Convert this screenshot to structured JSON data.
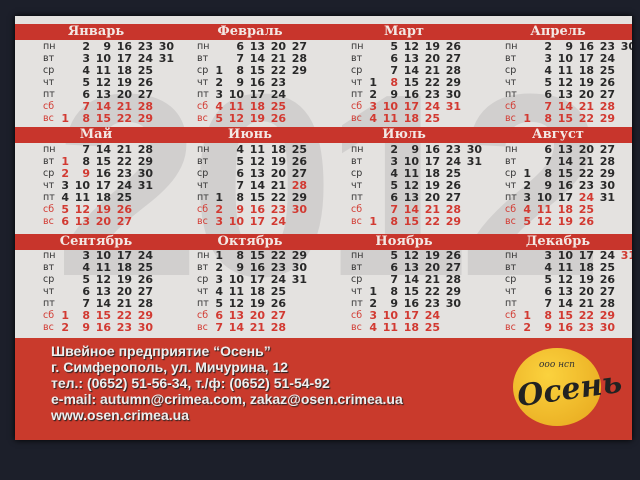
{
  "watermark": "2012",
  "weekdays": [
    "пн",
    "вт",
    "ср",
    "чт",
    "пт",
    "сб",
    "вс"
  ],
  "colors": {
    "red": "#c8352c",
    "holiday": "#d23a32",
    "logo": "#f0b82a"
  },
  "months": [
    {
      "name": "Январь",
      "start": 6,
      "days": 31,
      "holidays": []
    },
    {
      "name": "Февраль",
      "start": 2,
      "days": 29,
      "holidays": []
    },
    {
      "name": "Март",
      "start": 3,
      "days": 31,
      "holidays": [
        8
      ]
    },
    {
      "name": "Апрель",
      "start": 6,
      "days": 30,
      "holidays": []
    },
    {
      "name": "Май",
      "start": 1,
      "days": 31,
      "holidays": [
        1,
        2,
        9
      ]
    },
    {
      "name": "Июнь",
      "start": 4,
      "days": 30,
      "holidays": [
        28
      ]
    },
    {
      "name": "Июль",
      "start": 6,
      "days": 31,
      "holidays": []
    },
    {
      "name": "Август",
      "start": 2,
      "days": 31,
      "holidays": [
        24
      ]
    },
    {
      "name": "Сентябрь",
      "start": 5,
      "days": 30,
      "holidays": []
    },
    {
      "name": "Октябрь",
      "start": 0,
      "days": 31,
      "holidays": []
    },
    {
      "name": "Ноябрь",
      "start": 3,
      "days": 30,
      "holidays": []
    },
    {
      "name": "Декабрь",
      "start": 5,
      "days": 31,
      "holidays": [
        31
      ]
    }
  ],
  "footer": {
    "company": "Швейное предприятие “Осень”",
    "address": "г. Симферополь, ул. Мичурина, 12",
    "phones": "тел.: (0652) 51-56-34, т./ф: (0652) 51-54-92",
    "email": "e-mail: autumn@crimea.com, zakaz@osen.crimea.ua",
    "web": "www.osen.crimea.ua"
  },
  "logo": {
    "small": "ооо нсп",
    "name": "Осень"
  }
}
